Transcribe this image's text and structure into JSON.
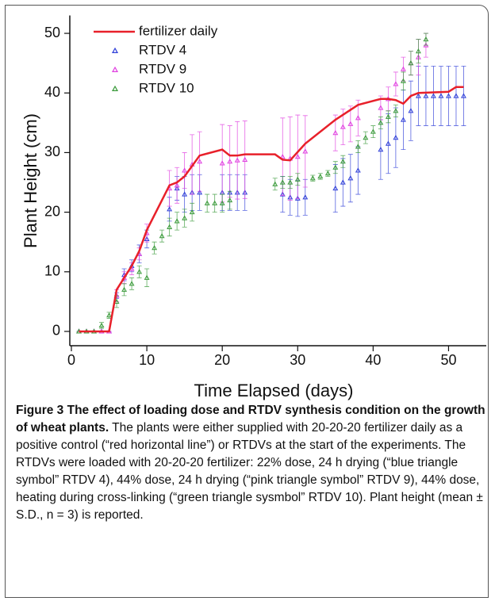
{
  "chart_data": {
    "type": "scatter",
    "x_label": "Time Elapsed (days)",
    "y_label": "Plant Height (cm)",
    "xlim": [
      0,
      55
    ],
    "ylim": [
      -2,
      53
    ],
    "xticks": [
      0,
      10,
      20,
      30,
      40,
      50
    ],
    "yticks": [
      0,
      10,
      20,
      30,
      40,
      50
    ],
    "legend": "upper left",
    "series": [
      {
        "name": "fertilizer daily",
        "color": "#e8202a",
        "x": [
          1,
          5,
          6,
          7,
          8,
          9,
          10,
          13,
          14,
          15,
          17,
          20,
          21,
          22,
          23,
          27,
          28,
          29,
          31,
          35,
          38,
          41,
          42,
          43,
          44,
          45,
          46,
          50,
          51,
          52
        ],
        "values": [
          0,
          0,
          7,
          9,
          11,
          13.5,
          17,
          24.5,
          25,
          26,
          29.5,
          30.5,
          29.5,
          29.5,
          29.7,
          29.7,
          28.8,
          28.7,
          31.5,
          35.5,
          38,
          39,
          39,
          38.8,
          38.2,
          39.5,
          40,
          40.2,
          41,
          41
        ]
      },
      {
        "name": "RTDV 4",
        "color": "#2f3fd8",
        "x": [
          1,
          2,
          3,
          4,
          5,
          6,
          7,
          8,
          9,
          10,
          13,
          14,
          15,
          16,
          17,
          20,
          21,
          22,
          23,
          28,
          29,
          30,
          31,
          35,
          36,
          37,
          38,
          41,
          42,
          43,
          44,
          45,
          46,
          47,
          48,
          49,
          50,
          51,
          52
        ],
        "values": [
          0,
          0,
          0,
          0,
          0,
          6,
          9.5,
          11,
          13,
          15.5,
          20.5,
          24,
          23,
          23.3,
          23.3,
          23.3,
          23.3,
          23.3,
          23.3,
          23,
          22.5,
          22.3,
          22.5,
          24,
          25,
          25.7,
          27,
          30.5,
          31.5,
          32.5,
          35.5,
          37,
          39.5,
          39.5,
          39.5,
          39.5,
          39.5,
          39.5,
          39.5
        ],
        "errors": [
          0,
          0,
          0,
          0,
          0,
          0.5,
          1,
          1,
          1.5,
          1.5,
          2,
          2,
          3,
          3,
          3,
          3,
          3,
          3,
          3,
          3,
          3,
          3,
          3,
          4,
          4,
          4,
          4,
          5,
          5,
          5,
          5,
          5,
          5,
          5,
          5,
          5,
          5,
          5,
          5
        ]
      },
      {
        "name": "RTDV 9",
        "color": "#e040e0",
        "x": [
          1,
          2,
          3,
          4,
          5,
          6,
          7,
          8,
          9,
          10,
          13,
          14,
          15,
          16,
          17,
          20,
          21,
          22,
          23,
          28,
          29,
          30,
          31,
          35,
          36,
          37,
          38,
          41,
          42,
          43,
          44,
          45,
          46,
          47
        ],
        "values": [
          0,
          0,
          0,
          0,
          0,
          6,
          9,
          10.5,
          13,
          16.5,
          24,
          24.5,
          27,
          28,
          28.5,
          28.2,
          28.5,
          28.7,
          28.8,
          29.3,
          29,
          29.3,
          30.2,
          33.3,
          34.3,
          34.8,
          35.8,
          37.5,
          39,
          41.5,
          44,
          45,
          46,
          48
        ],
        "errors": [
          0,
          0,
          0,
          0,
          0,
          1,
          1,
          1,
          1,
          1.5,
          3,
          3,
          3,
          5,
          5,
          6.5,
          6,
          6.5,
          6.5,
          6.5,
          7,
          7,
          6,
          3,
          3,
          3,
          3,
          2,
          2,
          2,
          2,
          2,
          3,
          2
        ]
      },
      {
        "name": "RTDV 10",
        "color": "#3a9a3a",
        "x": [
          1,
          2,
          3,
          4,
          5,
          6,
          7,
          8,
          9,
          10,
          11,
          12,
          13,
          14,
          15,
          16,
          18,
          19,
          20,
          21,
          27,
          28,
          29,
          30,
          32,
          33,
          34,
          35,
          36,
          38,
          39,
          40,
          41,
          42,
          43,
          44,
          45,
          46,
          47
        ],
        "values": [
          0,
          0,
          0,
          1,
          2.7,
          5,
          7,
          8,
          10,
          9,
          14,
          16,
          17.5,
          18.5,
          19,
          20,
          21.5,
          21.5,
          21.5,
          22,
          24.7,
          25,
          25,
          25.5,
          25.7,
          26,
          26.5,
          27.5,
          28.5,
          31,
          32.5,
          33.5,
          35,
          36,
          37,
          42,
          45,
          47,
          49
        ],
        "errors": [
          0,
          0,
          0,
          0.5,
          0.5,
          1,
          1,
          1,
          1,
          1.5,
          1,
          1,
          1.5,
          1.5,
          1.5,
          1.5,
          1.5,
          1.5,
          1.5,
          1.5,
          1,
          1,
          1,
          1,
          0.5,
          0.5,
          0.5,
          1,
          1,
          1,
          1,
          1,
          1,
          1,
          1,
          1.5,
          2,
          2,
          1
        ]
      }
    ],
    "caption_title": "Figure 3 The effect of loading dose and RTDV synthesis condition on the growth of wheat plants.",
    "caption_text": "The plants were either supplied with 20-20-20 fertilizer daily as a positive control (“red horizontal line”) or RTDVs at the start of the experiments. The RTDVs were loaded with 20-20-20 fertilizer: 22% dose, 24 h drying (“blue triangle symbol” RTDV 4), 44% dose, 24 h drying (“pink triangle symbol” RTDV 9), 44% dose, heating during cross-linking (“green triangle sysmbol” RTDV 10). Plant height (mean ± S.D., n = 3) is reported."
  }
}
